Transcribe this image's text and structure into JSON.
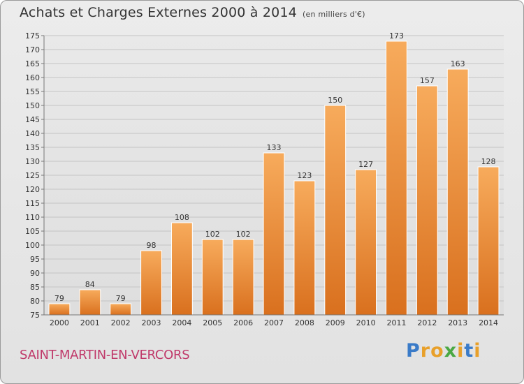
{
  "title": "Achats et Charges Externes 2000 à 2014",
  "unit": "(en milliers d'€)",
  "commune": "SAINT-MARTIN-EN-VERCORS",
  "logo": {
    "letters": [
      "P",
      "r",
      "o",
      "x",
      "i",
      "t",
      "i"
    ],
    "colors": [
      "#3a7bc8",
      "#e8a02a",
      "#e8a02a",
      "#4aa843",
      "#e8a02a",
      "#3a7bc8",
      "#e8a02a"
    ]
  },
  "chart_data": {
    "type": "bar",
    "categories": [
      "2000",
      "2001",
      "2002",
      "2003",
      "2004",
      "2005",
      "2006",
      "2007",
      "2008",
      "2009",
      "2010",
      "2011",
      "2012",
      "2013",
      "2014"
    ],
    "values": [
      79,
      84,
      79,
      98,
      108,
      102,
      102,
      133,
      123,
      150,
      127,
      173,
      157,
      163,
      128
    ],
    "ylim": [
      75,
      175
    ],
    "yticks": [
      75,
      80,
      85,
      90,
      95,
      100,
      105,
      110,
      115,
      120,
      125,
      130,
      135,
      140,
      145,
      150,
      155,
      160,
      165,
      170,
      175
    ],
    "grid": true,
    "bar_color": "#f0963e"
  }
}
